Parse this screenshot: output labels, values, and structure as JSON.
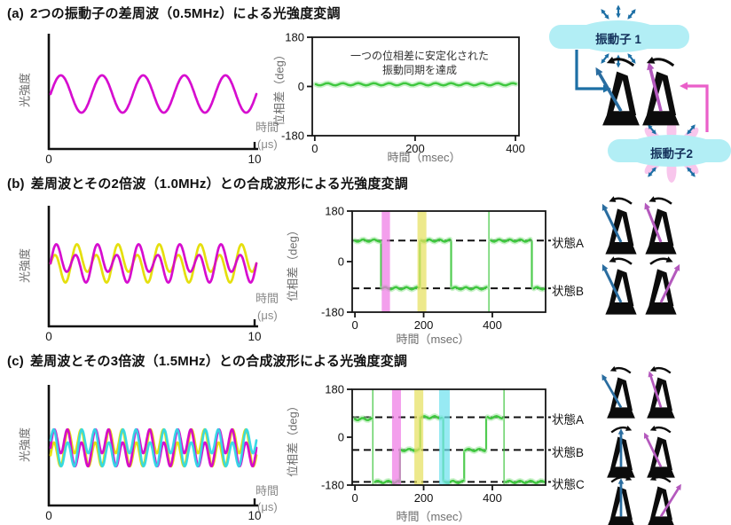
{
  "figure": {
    "panels": [
      {
        "prefix": "(a)",
        "title": "2つの振動子の差周波（0.5MHz）による光強度変調",
        "left_plot": {
          "ylabel": "光強度",
          "xunit_l1": "時間",
          "xunit_l2": "(μs)",
          "xtick0": "0",
          "xtick1": "10"
        },
        "middle_plot": {
          "ylabel": "位相差（deg）",
          "xlabel": "時間（msec）",
          "annotation_l1": "一つの位相差に安定化された",
          "annotation_l2": "振動同期を達成"
        },
        "right": {
          "oscillator1": "振動子 1",
          "oscillator2": "振動子2",
          "metronome_pairs": [
            [
              {
                "angle": -30,
                "color": "blue",
                "arrow": "left"
              },
              {
                "angle": -14,
                "color": "purple",
                "arrow": "left"
              }
            ]
          ]
        }
      },
      {
        "prefix": "(b)",
        "title": "差周波とその2倍波（1.0MHz）との合成波形による光強度変調",
        "left_plot": {
          "ylabel": "光強度",
          "xunit_l1": "時間",
          "xunit_l2": "(μs)",
          "xtick0": "0",
          "xtick1": "10"
        },
        "middle_plot": {
          "ylabel": "位相差（deg）",
          "xlabel": "時間（msec）",
          "state_labels": [
            "状態A",
            "状態B"
          ]
        },
        "right": {
          "metronome_pairs": [
            [
              {
                "angle": -26,
                "color": "blue",
                "arrow": "left"
              },
              {
                "angle": -22,
                "color": "purple",
                "arrow": "left"
              }
            ],
            [
              {
                "angle": -26,
                "color": "blue",
                "arrow": "left"
              },
              {
                "angle": 26,
                "color": "purple",
                "arrow": "right"
              }
            ]
          ]
        }
      },
      {
        "prefix": "(c)",
        "title": "差周波とその3倍波（1.5MHz）との合成波形による光強度変調",
        "left_plot": {
          "ylabel": "光強度",
          "xunit_l1": "時間",
          "xunit_l2": "(μs)",
          "xtick0": "0",
          "xtick1": "10"
        },
        "middle_plot": {
          "ylabel": "位相差（deg）",
          "xlabel": "時間（msec）",
          "state_labels": [
            "状態A",
            "状態B",
            "状態C"
          ]
        },
        "right": {
          "metronome_pairs": [
            [
              {
                "angle": -30,
                "color": "blue",
                "arrow": "left"
              },
              {
                "angle": -18,
                "color": "purple",
                "arrow": "left"
              }
            ],
            [
              {
                "angle": 0,
                "color": "blue",
                "arrow": "right"
              },
              {
                "angle": -26,
                "color": "purple",
                "arrow": "left"
              }
            ],
            [
              {
                "angle": 0,
                "color": "blue",
                "arrow": "right"
              },
              {
                "angle": 32,
                "color": "purple",
                "arrow": "left"
              }
            ]
          ]
        }
      }
    ]
  },
  "colors": {
    "magenta": "#d400cc",
    "yellow": "#e4dd00",
    "cyan": "#2fd8e6",
    "green": "#3ec73e",
    "green_halo": "#9fe89f",
    "band_magenta": "#ee7ae4",
    "band_yellow": "#e6e060",
    "band_cyan": "#6fe2ef",
    "pendulum_blue": "#2a6da0",
    "pendulum_purple": "#b459bd",
    "arrow_blue": "#1d6fa5",
    "arrow_pink": "#ea5fc9",
    "blob_cyan": "#b2eef5",
    "burst_pink": "#f8c6ec",
    "label_navy": "#13305a"
  },
  "chart_data": [
    {
      "id": "a-left",
      "type": "line",
      "subtype": "waveform",
      "title": "差周波（0.5MHz）による光強度変調波形",
      "xlabel": "時間 (μs)",
      "ylabel": "光強度",
      "xlim": [
        0,
        10
      ],
      "xticks": [
        0,
        10
      ],
      "grid": false,
      "series": [
        {
          "name": "magenta",
          "color": "#d400cc",
          "components": [
            {
              "freq_MHz": 0.5,
              "amp": 1.0,
              "phase": 0
            }
          ]
        }
      ]
    },
    {
      "id": "a-mid",
      "type": "line",
      "subtype": "phase_steps",
      "xlabel": "時間 (msec)",
      "ylabel": "位相差 (deg)",
      "ylim": [
        -180,
        180
      ],
      "xlim": [
        -5,
        407
      ],
      "yticks": [
        180,
        0,
        -180
      ],
      "xticks": [
        0,
        200,
        400
      ],
      "annotation": [
        "一つの位相差に安定化された",
        "振動同期を達成"
      ],
      "segments": [
        [
          2,
          401,
          8
        ]
      ],
      "dashed_levels": [],
      "bands": [],
      "wrap_lines": [],
      "connectors": [],
      "state_levels": []
    },
    {
      "id": "b-left",
      "type": "line",
      "subtype": "waveform",
      "title": "差周波＋2倍波（1.0MHz）合成波形",
      "xlabel": "時間 (μs)",
      "ylabel": "光強度",
      "xlim": [
        0,
        10
      ],
      "xticks": [
        0,
        10
      ],
      "grid": false,
      "series": [
        {
          "name": "yellow",
          "color": "#e4dd00",
          "components": [
            {
              "freq_MHz": 0.5,
              "amp": 0.45,
              "phase": 3.1416
            },
            {
              "freq_MHz": 1.0,
              "amp": 0.8,
              "phase": 0
            }
          ]
        },
        {
          "name": "magenta",
          "color": "#d400cc",
          "components": [
            {
              "freq_MHz": 0.5,
              "amp": 0.45,
              "phase": 0
            },
            {
              "freq_MHz": 1.0,
              "amp": 0.8,
              "phase": 0
            }
          ]
        }
      ]
    },
    {
      "id": "b-mid",
      "type": "line",
      "subtype": "phase_steps",
      "xlabel": "時間 (msec)",
      "ylabel": "位相差 (deg)",
      "ylim": [
        -180,
        180
      ],
      "xlim": [
        -8,
        555
      ],
      "yticks": [
        180,
        0,
        -180
      ],
      "xticks": [
        0,
        200,
        400
      ],
      "dashed_levels": [
        75,
        -95
      ],
      "state_levels": [
        {
          "label": "状態A",
          "value": 75
        },
        {
          "label": "状態B",
          "value": -95
        }
      ],
      "segments": [
        [
          0,
          72,
          75
        ],
        [
          80,
          185,
          -95
        ],
        [
          193,
          276,
          75
        ],
        [
          284,
          383,
          -95
        ],
        [
          396,
          510,
          75
        ],
        [
          521,
          551,
          -95
        ]
      ],
      "connectors": [
        [
          76,
          75,
          -95
        ],
        [
          189,
          -95,
          75
        ],
        [
          280,
          75,
          -95
        ],
        [
          515,
          75,
          -95
        ]
      ],
      "wrap_lines": [
        390
      ],
      "bands": [
        {
          "color": "#ee7ae4",
          "x0": 78,
          "x1": 102
        },
        {
          "color": "#e6e060",
          "x0": 182,
          "x1": 208
        }
      ]
    },
    {
      "id": "c-left",
      "type": "line",
      "subtype": "waveform",
      "title": "差周波＋3倍波（1.5MHz）合成波形",
      "xlabel": "時間 (μs)",
      "ylabel": "光強度",
      "xlim": [
        0,
        10
      ],
      "xticks": [
        0,
        10
      ],
      "grid": false,
      "series": [
        {
          "name": "yellow",
          "color": "#e4dd00",
          "components": [
            {
              "freq_MHz": 0.5,
              "amp": 0.42,
              "phase": -2.094
            },
            {
              "freq_MHz": 1.5,
              "amp": 0.68,
              "phase": 0
            }
          ]
        },
        {
          "name": "magenta",
          "color": "#d400cc",
          "components": [
            {
              "freq_MHz": 0.5,
              "amp": 0.42,
              "phase": 0
            },
            {
              "freq_MHz": 1.5,
              "amp": 0.68,
              "phase": 0
            }
          ]
        },
        {
          "name": "cyan",
          "color": "#2fd8e6",
          "components": [
            {
              "freq_MHz": 0.5,
              "amp": 0.42,
              "phase": 2.094
            },
            {
              "freq_MHz": 1.5,
              "amp": 0.68,
              "phase": 0
            }
          ]
        }
      ]
    },
    {
      "id": "c-mid",
      "type": "line",
      "subtype": "phase_steps",
      "xlabel": "時間 (msec)",
      "ylabel": "位相差 (deg)",
      "ylim": [
        -180,
        180
      ],
      "xlim": [
        -8,
        555
      ],
      "yticks": [
        180,
        0,
        -180
      ],
      "xticks": [
        0,
        200,
        400
      ],
      "dashed_levels": [
        75,
        -48,
        -168
      ],
      "state_levels": [
        {
          "label": "状態A",
          "value": 75
        },
        {
          "label": "状態B",
          "value": -48
        },
        {
          "label": "状態C",
          "value": -168
        }
      ],
      "segments": [
        [
          0,
          48,
          68
        ],
        [
          58,
          128,
          -168
        ],
        [
          134,
          186,
          -48
        ],
        [
          193,
          252,
          75
        ],
        [
          262,
          315,
          -168
        ],
        [
          322,
          378,
          -48
        ],
        [
          386,
          428,
          75
        ],
        [
          440,
          551,
          -168
        ]
      ],
      "connectors": [
        [
          131,
          -168,
          -48
        ],
        [
          190,
          -48,
          75
        ],
        [
          257,
          75,
          -168
        ],
        [
          318,
          -168,
          -48
        ],
        [
          382,
          -48,
          75
        ]
      ],
      "wrap_lines": [
        52,
        434
      ],
      "bands": [
        {
          "color": "#ee7ae4",
          "x0": 108,
          "x1": 134
        },
        {
          "color": "#e6e060",
          "x0": 173,
          "x1": 199
        },
        {
          "color": "#6fe2ef",
          "x0": 245,
          "x1": 276
        }
      ]
    }
  ]
}
